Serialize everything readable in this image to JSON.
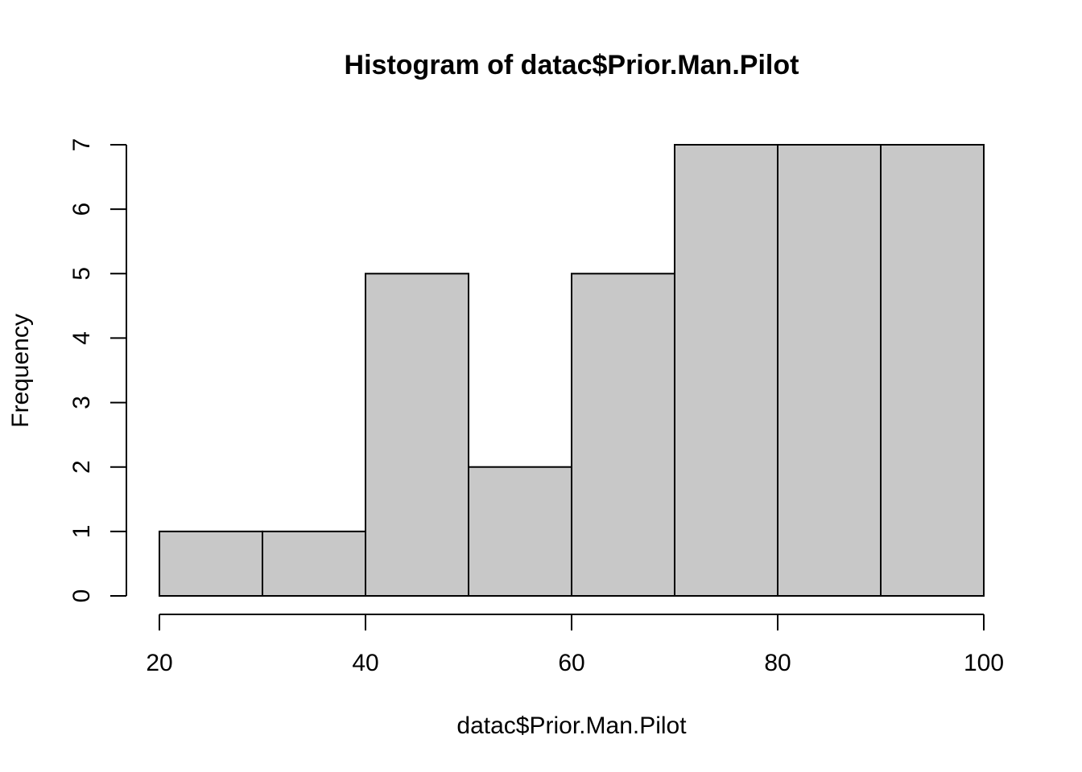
{
  "chart_data": {
    "type": "bar",
    "title": "Histogram of datac$Prior.Man.Pilot",
    "xlabel": "datac$Prior.Man.Pilot",
    "ylabel": "Frequency",
    "bins": [
      {
        "start": 20,
        "end": 30,
        "count": 1
      },
      {
        "start": 30,
        "end": 40,
        "count": 1
      },
      {
        "start": 40,
        "end": 50,
        "count": 5
      },
      {
        "start": 50,
        "end": 60,
        "count": 2
      },
      {
        "start": 60,
        "end": 70,
        "count": 5
      },
      {
        "start": 70,
        "end": 80,
        "count": 7
      },
      {
        "start": 80,
        "end": 90,
        "count": 7
      },
      {
        "start": 90,
        "end": 100,
        "count": 7
      }
    ],
    "xlim": [
      20,
      100
    ],
    "ylim": [
      0,
      7
    ],
    "xticks": [
      "20",
      "40",
      "60",
      "80",
      "100"
    ],
    "yticks": [
      "0",
      "1",
      "2",
      "3",
      "4",
      "5",
      "6",
      "7"
    ],
    "bar_color": "#c8c8c8",
    "grid": false
  }
}
